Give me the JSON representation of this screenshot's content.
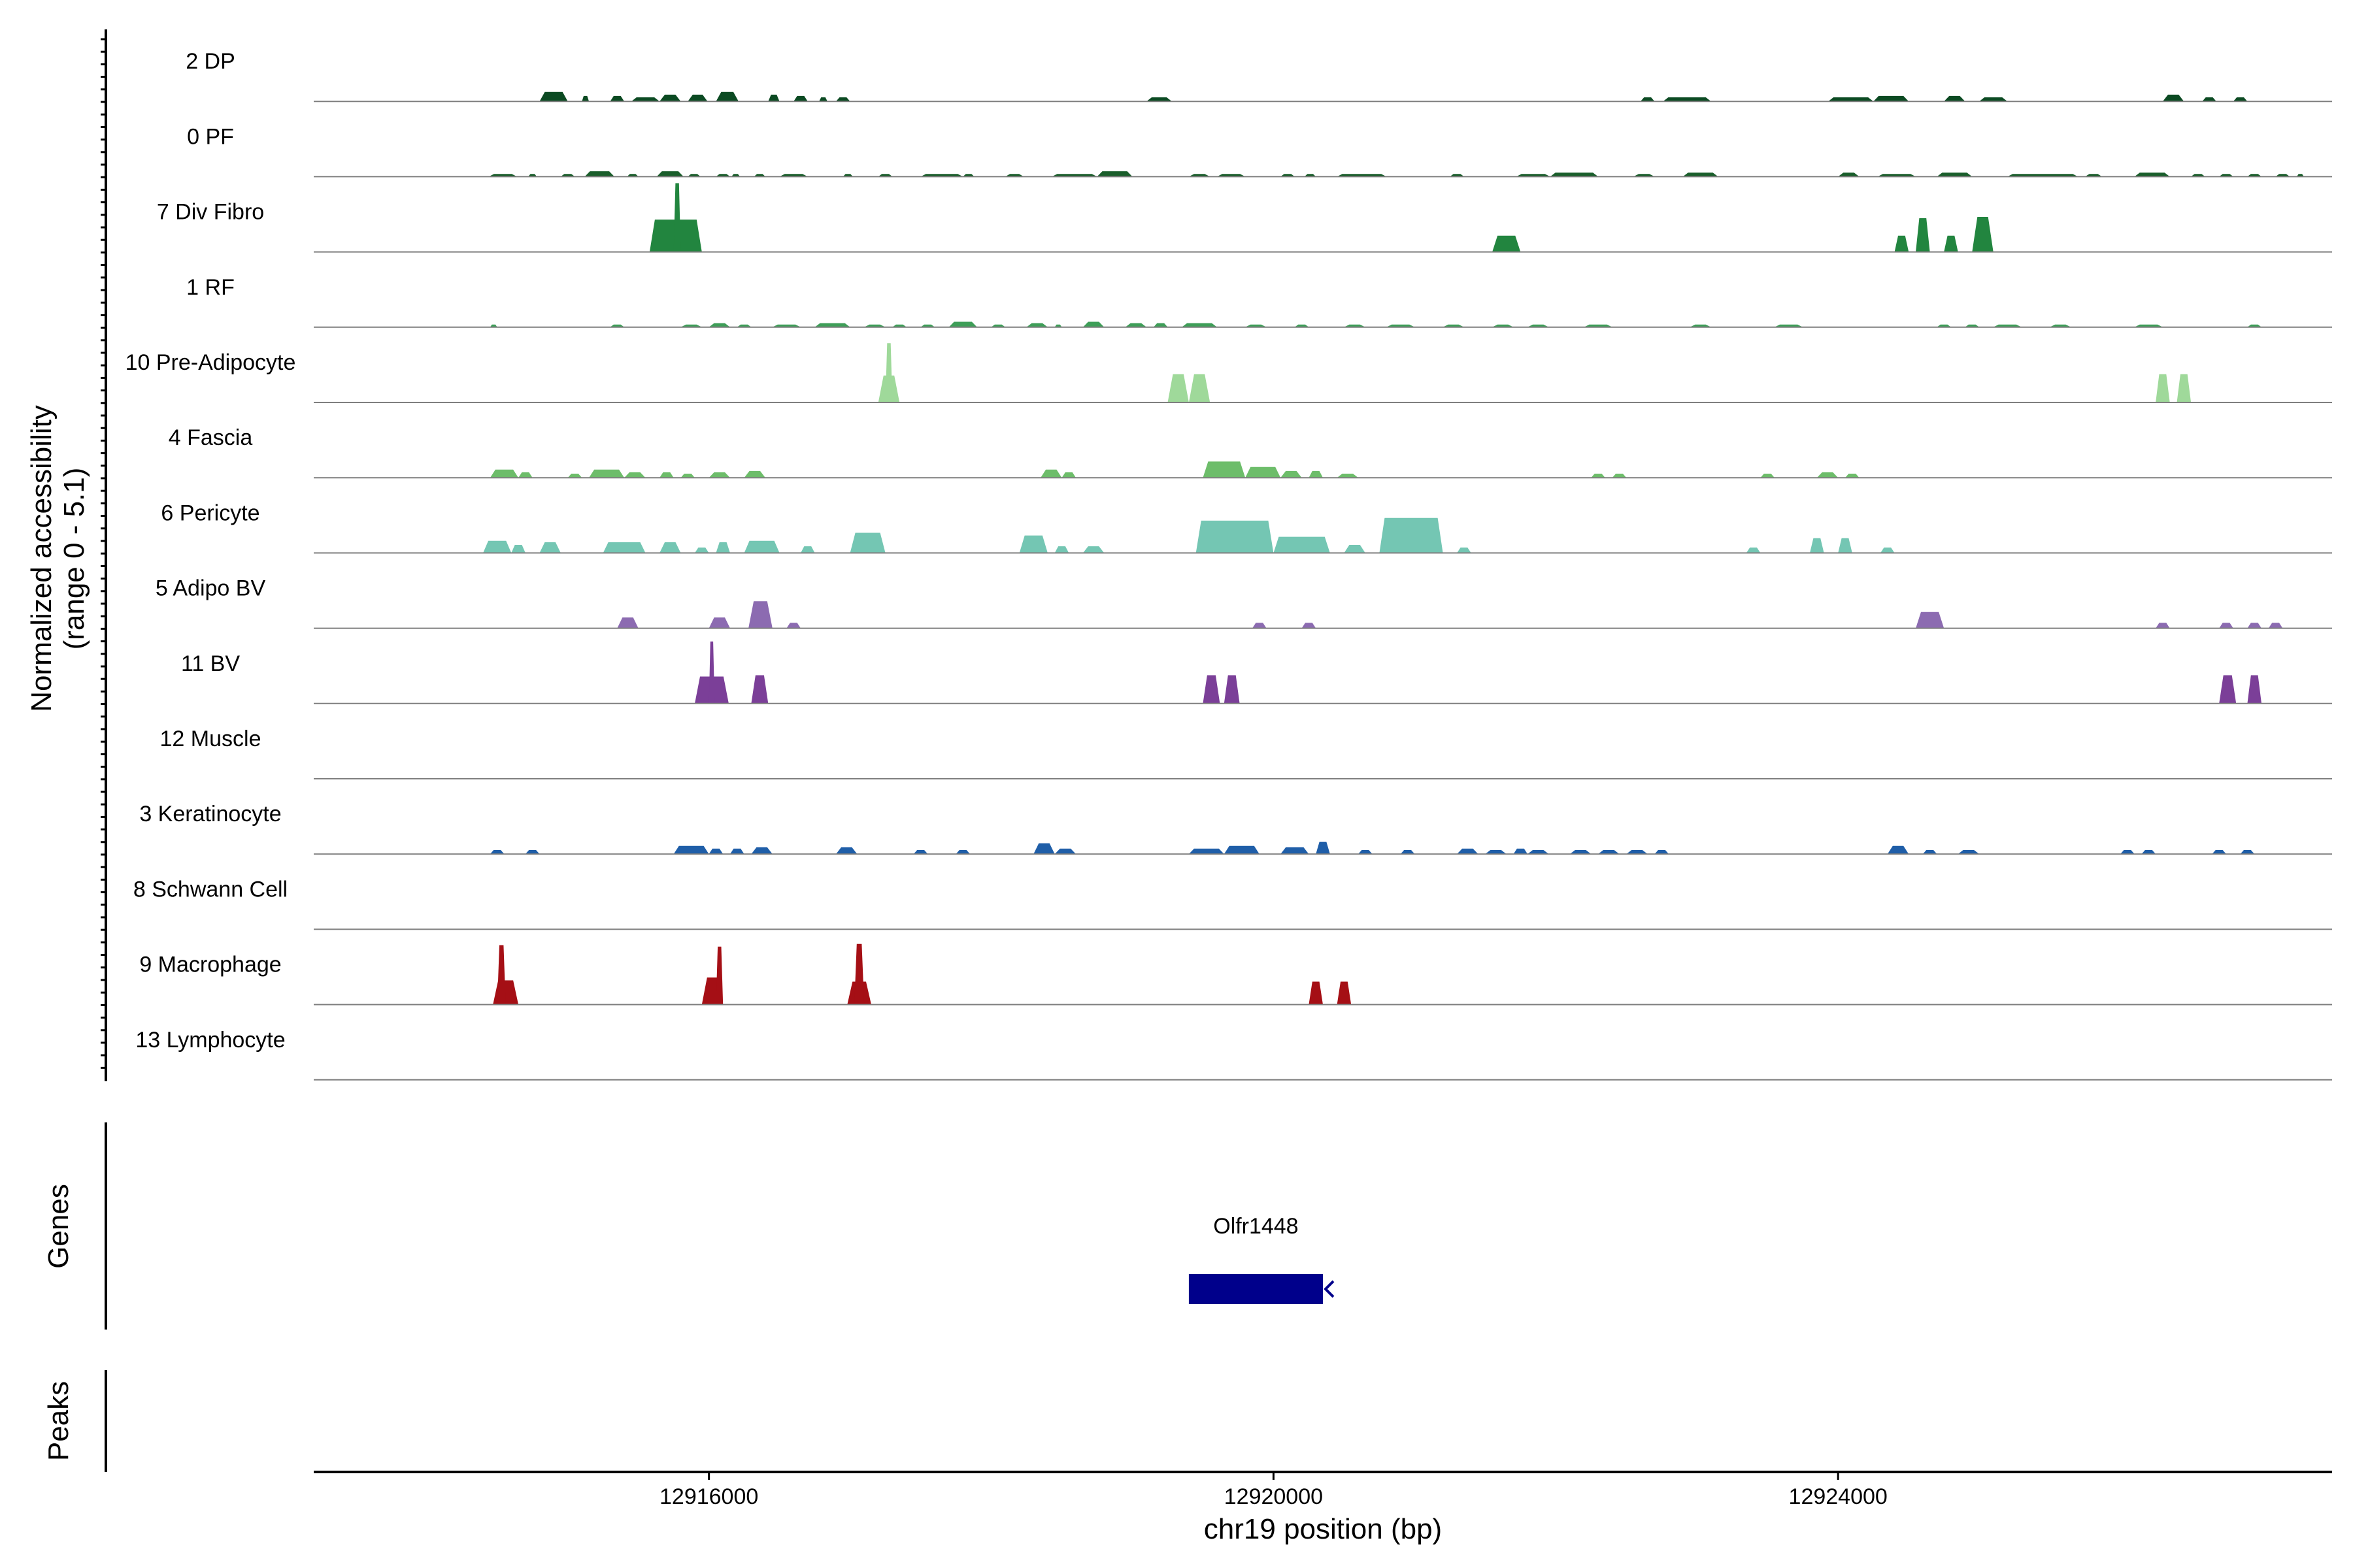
{
  "chart_data": {
    "type": "coverage",
    "title": "",
    "ylabel": [
      "Normalized accessibility",
      "(range 0 - 5.1)"
    ],
    "y_range": [
      0,
      5.1
    ],
    "xlabel": "chr19 position (bp)",
    "chromosome": "chr19",
    "xlim": [
      12913200,
      12927500
    ],
    "x_ticks": [
      12916000,
      12920000,
      12924000
    ],
    "x_tick_labels": [
      "12916000",
      "12920000",
      "12924000"
    ],
    "tracks": [
      {
        "name": "2 DP",
        "color": "#0b4a22",
        "peaks": [
          [
            12914800,
            12915000,
            0.7
          ],
          [
            12915100,
            12915150,
            0.4
          ],
          [
            12915300,
            12915400,
            0.4
          ],
          [
            12915450,
            12915650,
            0.3
          ],
          [
            12915650,
            12915800,
            0.5
          ],
          [
            12915850,
            12915990,
            0.5
          ],
          [
            12916050,
            12916210,
            0.7
          ],
          [
            12916420,
            12916500,
            0.5
          ],
          [
            12916600,
            12916700,
            0.4
          ],
          [
            12916780,
            12916840,
            0.3
          ],
          [
            12916900,
            12917000,
            0.3
          ],
          [
            12919100,
            12919280,
            0.3
          ],
          [
            12922600,
            12922700,
            0.3
          ],
          [
            12922760,
            12923100,
            0.3
          ],
          [
            12923930,
            12924250,
            0.3
          ],
          [
            12924250,
            12924500,
            0.4
          ],
          [
            12924750,
            12924900,
            0.4
          ],
          [
            12925000,
            12925200,
            0.3
          ],
          [
            12926300,
            12926450,
            0.5
          ],
          [
            12926580,
            12926680,
            0.3
          ],
          [
            12926800,
            12926900,
            0.3
          ]
        ]
      },
      {
        "name": "0 PF",
        "color": "#1a5e2b",
        "peaks": [
          [
            12914440,
            12914640,
            0.2
          ],
          [
            12914720,
            12914780,
            0.2
          ],
          [
            12914950,
            12915050,
            0.2
          ],
          [
            12915120,
            12915330,
            0.4
          ],
          [
            12915420,
            12915500,
            0.2
          ],
          [
            12915630,
            12915820,
            0.4
          ],
          [
            12915850,
            12915940,
            0.2
          ],
          [
            12916050,
            12916150,
            0.2
          ],
          [
            12916160,
            12916220,
            0.2
          ],
          [
            12916320,
            12916400,
            0.2
          ],
          [
            12916500,
            12916700,
            0.2
          ],
          [
            12916950,
            12917020,
            0.2
          ],
          [
            12917200,
            12917300,
            0.2
          ],
          [
            12917500,
            12917800,
            0.2
          ],
          [
            12917800,
            12917880,
            0.2
          ],
          [
            12918100,
            12918230,
            0.2
          ],
          [
            12918430,
            12918750,
            0.2
          ],
          [
            12918750,
            12919000,
            0.4
          ],
          [
            12919400,
            12919550,
            0.2
          ],
          [
            12919600,
            12919800,
            0.2
          ],
          [
            12920050,
            12920150,
            0.2
          ],
          [
            12920220,
            12920300,
            0.2
          ],
          [
            12920450,
            12920800,
            0.2
          ],
          [
            12921250,
            12921350,
            0.2
          ],
          [
            12921720,
            12921960,
            0.2
          ],
          [
            12921960,
            12922300,
            0.3
          ],
          [
            12922550,
            12922700,
            0.2
          ],
          [
            12922900,
            12923150,
            0.3
          ],
          [
            12924000,
            12924150,
            0.3
          ],
          [
            12924280,
            12924550,
            0.2
          ],
          [
            12924700,
            12924950,
            0.3
          ],
          [
            12925200,
            12925700,
            0.2
          ],
          [
            12925750,
            12925870,
            0.2
          ],
          [
            12926100,
            12926350,
            0.3
          ],
          [
            12926500,
            12926600,
            0.2
          ],
          [
            12926700,
            12926800,
            0.2
          ],
          [
            12926900,
            12927000,
            0.2
          ],
          [
            12927100,
            12927200,
            0.2
          ],
          [
            12927250,
            12927300,
            0.2
          ]
        ]
      },
      {
        "name": "7 Div Fibro",
        "color": "#22853f",
        "peaks": [
          [
            12915580,
            12915950,
            2.4
          ],
          [
            12915750,
            12915800,
            5.1
          ],
          [
            12921550,
            12921750,
            1.2
          ],
          [
            12924400,
            12924500,
            1.2
          ],
          [
            12924550,
            12924650,
            2.5
          ],
          [
            12924750,
            12924850,
            1.2
          ],
          [
            12924950,
            12925100,
            2.6
          ]
        ]
      },
      {
        "name": "1 RF",
        "color": "#3e9e58",
        "peaks": [
          [
            12914450,
            12914500,
            0.2
          ],
          [
            12915300,
            12915400,
            0.2
          ],
          [
            12915800,
            12915950,
            0.2
          ],
          [
            12916000,
            12916150,
            0.3
          ],
          [
            12916200,
            12916300,
            0.2
          ],
          [
            12916450,
            12916650,
            0.2
          ],
          [
            12916750,
            12917000,
            0.3
          ],
          [
            12917100,
            12917250,
            0.2
          ],
          [
            12917300,
            12917400,
            0.2
          ],
          [
            12917500,
            12917600,
            0.2
          ],
          [
            12917700,
            12917900,
            0.4
          ],
          [
            12918000,
            12918100,
            0.2
          ],
          [
            12918250,
            12918400,
            0.3
          ],
          [
            12918450,
            12918500,
            0.2
          ],
          [
            12918650,
            12918800,
            0.4
          ],
          [
            12918950,
            12919100,
            0.3
          ],
          [
            12919150,
            12919250,
            0.3
          ],
          [
            12919350,
            12919600,
            0.3
          ],
          [
            12919800,
            12919950,
            0.2
          ],
          [
            12920150,
            12920250,
            0.2
          ],
          [
            12920500,
            12920650,
            0.2
          ],
          [
            12920800,
            12921000,
            0.2
          ],
          [
            12921200,
            12921350,
            0.2
          ],
          [
            12921550,
            12921700,
            0.2
          ],
          [
            12921800,
            12921950,
            0.2
          ],
          [
            12922200,
            12922400,
            0.2
          ],
          [
            12922950,
            12923100,
            0.2
          ],
          [
            12923550,
            12923750,
            0.2
          ],
          [
            12924700,
            12924800,
            0.2
          ],
          [
            12924900,
            12925000,
            0.2
          ],
          [
            12925100,
            12925300,
            0.2
          ],
          [
            12925500,
            12925650,
            0.2
          ],
          [
            12926100,
            12926300,
            0.2
          ],
          [
            12926900,
            12927000,
            0.2
          ]
        ]
      },
      {
        "name": "10 Pre-Adipocyte",
        "color": "#9fd99a",
        "peaks": [
          [
            12917200,
            12917350,
            2.0
          ],
          [
            12917250,
            12917300,
            4.4
          ],
          [
            12919250,
            12919400,
            2.1
          ],
          [
            12919400,
            12919550,
            2.1
          ],
          [
            12926250,
            12926350,
            2.1
          ],
          [
            12926400,
            12926500,
            2.1
          ]
        ]
      },
      {
        "name": "4 Fascia",
        "color": "#6dbd6a",
        "peaks": [
          [
            12914450,
            12914650,
            0.6
          ],
          [
            12914650,
            12914750,
            0.4
          ],
          [
            12915000,
            12915100,
            0.3
          ],
          [
            12915150,
            12915400,
            0.6
          ],
          [
            12915400,
            12915550,
            0.4
          ],
          [
            12915650,
            12915750,
            0.4
          ],
          [
            12915800,
            12915900,
            0.3
          ],
          [
            12916000,
            12916150,
            0.4
          ],
          [
            12916250,
            12916400,
            0.5
          ],
          [
            12918350,
            12918500,
            0.6
          ],
          [
            12918500,
            12918600,
            0.4
          ],
          [
            12919500,
            12919800,
            1.2
          ],
          [
            12919800,
            12920050,
            0.8
          ],
          [
            12920050,
            12920200,
            0.5
          ],
          [
            12920250,
            12920350,
            0.5
          ],
          [
            12920450,
            12920600,
            0.3
          ],
          [
            12922250,
            12922350,
            0.3
          ],
          [
            12922400,
            12922500,
            0.3
          ],
          [
            12923450,
            12923550,
            0.3
          ],
          [
            12923850,
            12924000,
            0.4
          ],
          [
            12924050,
            12924150,
            0.3
          ]
        ]
      },
      {
        "name": "6 Pericyte",
        "color": "#74c6b3",
        "peaks": [
          [
            12914400,
            12914600,
            0.9
          ],
          [
            12914600,
            12914700,
            0.6
          ],
          [
            12914800,
            12914950,
            0.8
          ],
          [
            12915250,
            12915550,
            0.8
          ],
          [
            12915650,
            12915800,
            0.8
          ],
          [
            12915900,
            12916000,
            0.4
          ],
          [
            12916050,
            12916150,
            0.8
          ],
          [
            12916250,
            12916500,
            0.9
          ],
          [
            12916650,
            12916750,
            0.5
          ],
          [
            12917000,
            12917250,
            1.5
          ],
          [
            12918200,
            12918400,
            1.3
          ],
          [
            12918450,
            12918550,
            0.5
          ],
          [
            12918650,
            12918800,
            0.5
          ],
          [
            12919450,
            12920000,
            2.4
          ],
          [
            12920000,
            12920400,
            1.2
          ],
          [
            12920500,
            12920650,
            0.6
          ],
          [
            12920750,
            12921200,
            2.6
          ],
          [
            12921300,
            12921400,
            0.4
          ],
          [
            12923350,
            12923450,
            0.4
          ],
          [
            12923800,
            12923900,
            1.1
          ],
          [
            12924000,
            12924100,
            1.1
          ],
          [
            12924300,
            12924400,
            0.4
          ]
        ]
      },
      {
        "name": "5 Adipo BV",
        "color": "#8c6bb1",
        "peaks": [
          [
            12915350,
            12915500,
            0.8
          ],
          [
            12916000,
            12916150,
            0.8
          ],
          [
            12916280,
            12916450,
            2.0
          ],
          [
            12916550,
            12916650,
            0.4
          ],
          [
            12919850,
            12919950,
            0.4
          ],
          [
            12920200,
            12920300,
            0.4
          ],
          [
            12924550,
            12924750,
            1.2
          ],
          [
            12926250,
            12926350,
            0.4
          ],
          [
            12926700,
            12926800,
            0.4
          ],
          [
            12926900,
            12927000,
            0.4
          ],
          [
            12927050,
            12927150,
            0.4
          ]
        ]
      },
      {
        "name": "11 BV",
        "color": "#7b3f98",
        "peaks": [
          [
            12915900,
            12916140,
            2.0
          ],
          [
            12916000,
            12916040,
            4.6
          ],
          [
            12916300,
            12916420,
            2.1
          ],
          [
            12919500,
            12919620,
            2.1
          ],
          [
            12919650,
            12919760,
            2.1
          ],
          [
            12926700,
            12926820,
            2.1
          ],
          [
            12926900,
            12927000,
            2.1
          ]
        ]
      },
      {
        "name": "12 Muscle",
        "color": "#555555",
        "peaks": []
      },
      {
        "name": "3 Keratinocyte",
        "color": "#1f5ea8",
        "peaks": [
          [
            12914450,
            12914550,
            0.3
          ],
          [
            12914700,
            12914800,
            0.3
          ],
          [
            12915750,
            12916000,
            0.6
          ],
          [
            12916000,
            12916100,
            0.4
          ],
          [
            12916150,
            12916250,
            0.4
          ],
          [
            12916300,
            12916450,
            0.5
          ],
          [
            12916900,
            12917050,
            0.5
          ],
          [
            12917450,
            12917550,
            0.3
          ],
          [
            12917750,
            12917850,
            0.3
          ],
          [
            12918300,
            12918450,
            0.8
          ],
          [
            12918450,
            12918600,
            0.4
          ],
          [
            12919400,
            12919650,
            0.4
          ],
          [
            12919650,
            12919900,
            0.6
          ],
          [
            12920050,
            12920250,
            0.5
          ],
          [
            12920300,
            12920400,
            0.9
          ],
          [
            12920600,
            12920700,
            0.3
          ],
          [
            12920900,
            12921000,
            0.3
          ],
          [
            12921300,
            12921450,
            0.4
          ],
          [
            12921500,
            12921650,
            0.3
          ],
          [
            12921700,
            12921800,
            0.4
          ],
          [
            12921800,
            12921950,
            0.3
          ],
          [
            12922100,
            12922250,
            0.3
          ],
          [
            12922300,
            12922450,
            0.3
          ],
          [
            12922500,
            12922650,
            0.3
          ],
          [
            12922700,
            12922800,
            0.3
          ],
          [
            12924350,
            12924500,
            0.6
          ],
          [
            12924600,
            12924700,
            0.3
          ],
          [
            12924850,
            12925000,
            0.3
          ],
          [
            12926000,
            12926100,
            0.3
          ],
          [
            12926150,
            12926250,
            0.3
          ],
          [
            12926650,
            12926750,
            0.3
          ],
          [
            12926850,
            12926950,
            0.3
          ]
        ]
      },
      {
        "name": "8 Schwann Cell",
        "color": "#555555",
        "peaks": []
      },
      {
        "name": "9 Macrophage",
        "color": "#a50f15",
        "peaks": [
          [
            12914470,
            12914650,
            1.8
          ],
          [
            12914500,
            12914560,
            4.4
          ],
          [
            12915950,
            12916100,
            2.0
          ],
          [
            12916050,
            12916100,
            4.3
          ],
          [
            12916980,
            12917150,
            1.7
          ],
          [
            12917030,
            12917100,
            4.5
          ],
          [
            12920250,
            12920350,
            1.7
          ],
          [
            12920450,
            12920550,
            1.7
          ]
        ]
      },
      {
        "name": "13 Lymphocyte",
        "color": "#555555",
        "peaks": []
      }
    ],
    "genes_label": "Genes",
    "peaks_label": "Peaks",
    "gene": {
      "name": "Olfr1448",
      "start": 12919400,
      "end": 12920350,
      "strand": "-",
      "color": "#00008b"
    }
  }
}
